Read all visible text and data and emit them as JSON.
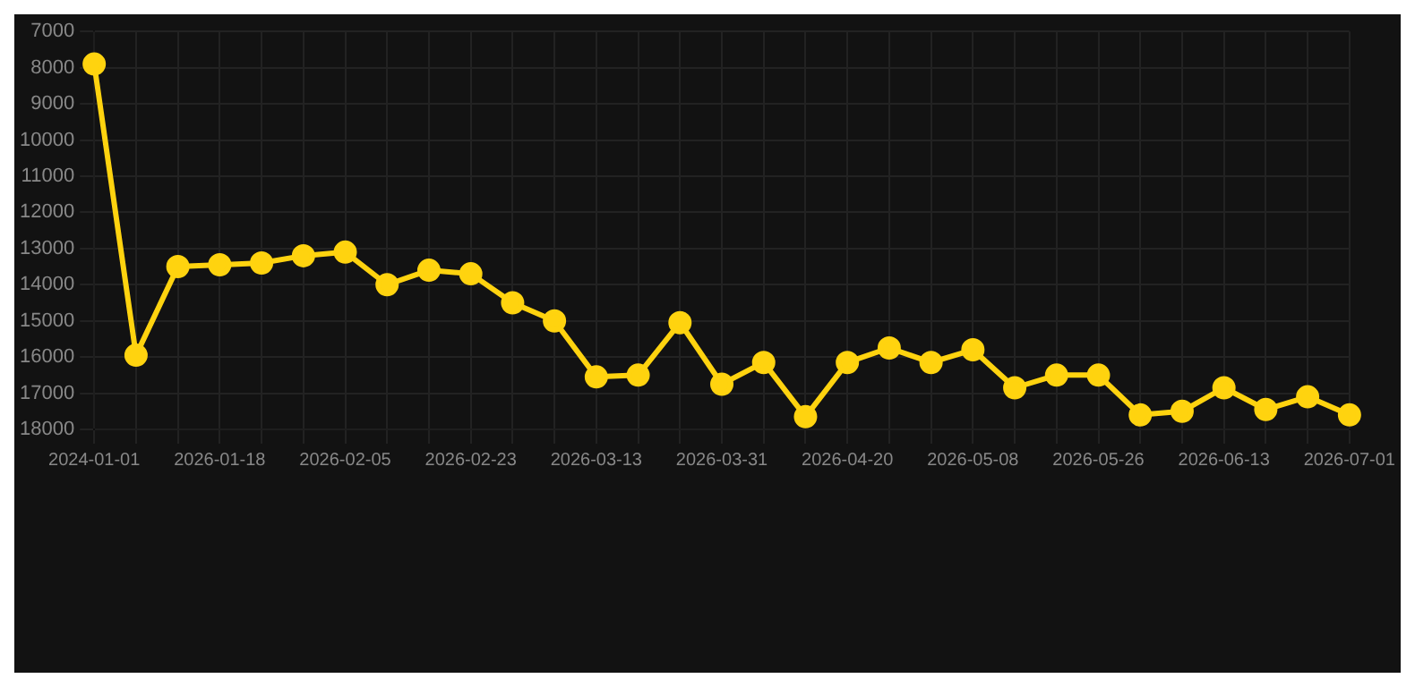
{
  "chart_data": {
    "type": "line",
    "categories": [
      "2024-01-01",
      null,
      null,
      "2026-01-18",
      null,
      null,
      "2026-02-05",
      null,
      null,
      "2026-02-23",
      null,
      null,
      "2026-03-13",
      null,
      null,
      "2026-03-31",
      null,
      null,
      "2026-04-20",
      null,
      null,
      "2026-05-08",
      null,
      null,
      "2026-05-26",
      null,
      null,
      "2026-06-13",
      null,
      null,
      "2026-07-01"
    ],
    "series": [
      {
        "color": "#ffd30f",
        "values": [
          7900,
          15950,
          13500,
          13450,
          13400,
          13200,
          13100,
          14000,
          13600,
          13700,
          14500,
          15000,
          16550,
          16500,
          15050,
          16750,
          16150,
          17650,
          16150,
          15750,
          16150,
          15800,
          16850,
          16500,
          16500,
          17600,
          17500,
          16850,
          17450,
          17100,
          17600
        ]
      }
    ],
    "ylim": [
      18000,
      7000
    ],
    "yticks": [
      7000,
      8000,
      9000,
      10000,
      11000,
      12000,
      13000,
      14000,
      15000,
      16000,
      17000,
      18000
    ],
    "grid": true,
    "marker": "circle",
    "line_style": "solid"
  }
}
